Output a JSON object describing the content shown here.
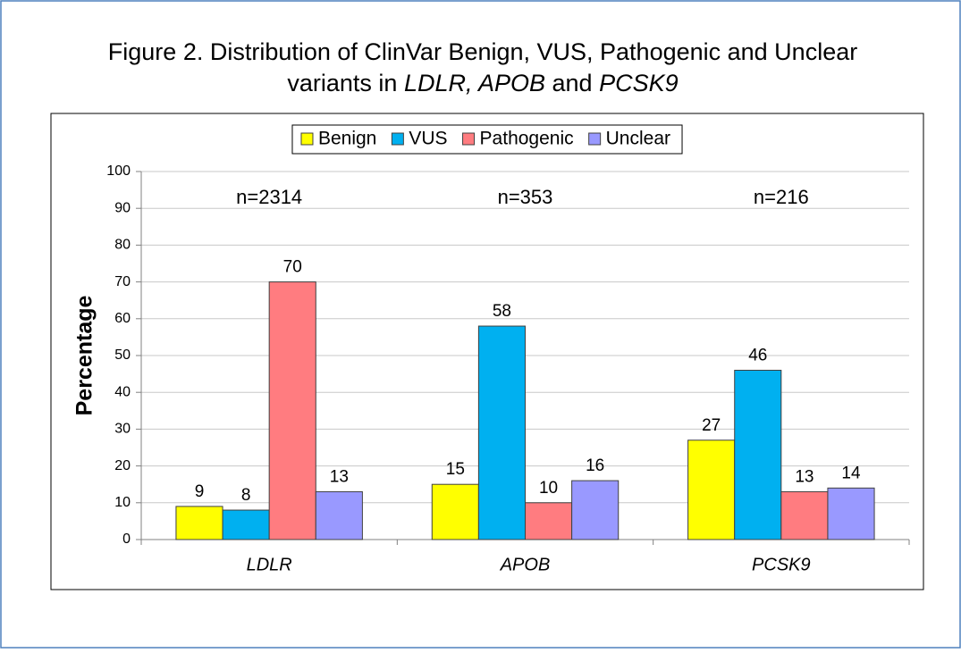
{
  "chart_data": {
    "type": "bar",
    "title": {
      "line1": "Figure 2. Distribution of ClinVar Benign, VUS, Pathogenic and Unclear",
      "line2": [
        {
          "text": "variants in "
        },
        {
          "text": "LDLR, APOB",
          "italic": true
        },
        {
          "text": " and "
        },
        {
          "text": "PCSK9",
          "italic": true
        }
      ]
    },
    "y_label": "Percentage",
    "categories": [
      "LDLR",
      "APOB",
      "PCSK9"
    ],
    "category_italic": true,
    "annotations": [
      "n=2314",
      "n=353",
      "n=216"
    ],
    "series": [
      {
        "name": "Benign",
        "color": "#ffff00",
        "values": [
          9,
          15,
          27
        ]
      },
      {
        "name": "VUS",
        "color": "#00b0f0",
        "values": [
          8,
          58,
          46
        ]
      },
      {
        "name": "Pathogenic",
        "color": "#ff7c80",
        "values": [
          70,
          10,
          13
        ]
      },
      {
        "name": "Unclear",
        "color": "#9999ff",
        "values": [
          13,
          16,
          14
        ]
      }
    ],
    "ylim": [
      0,
      100
    ],
    "yticks": [
      0,
      10,
      20,
      30,
      40,
      50,
      60,
      70,
      80,
      90,
      100
    ],
    "grid": true,
    "legend": "top"
  }
}
